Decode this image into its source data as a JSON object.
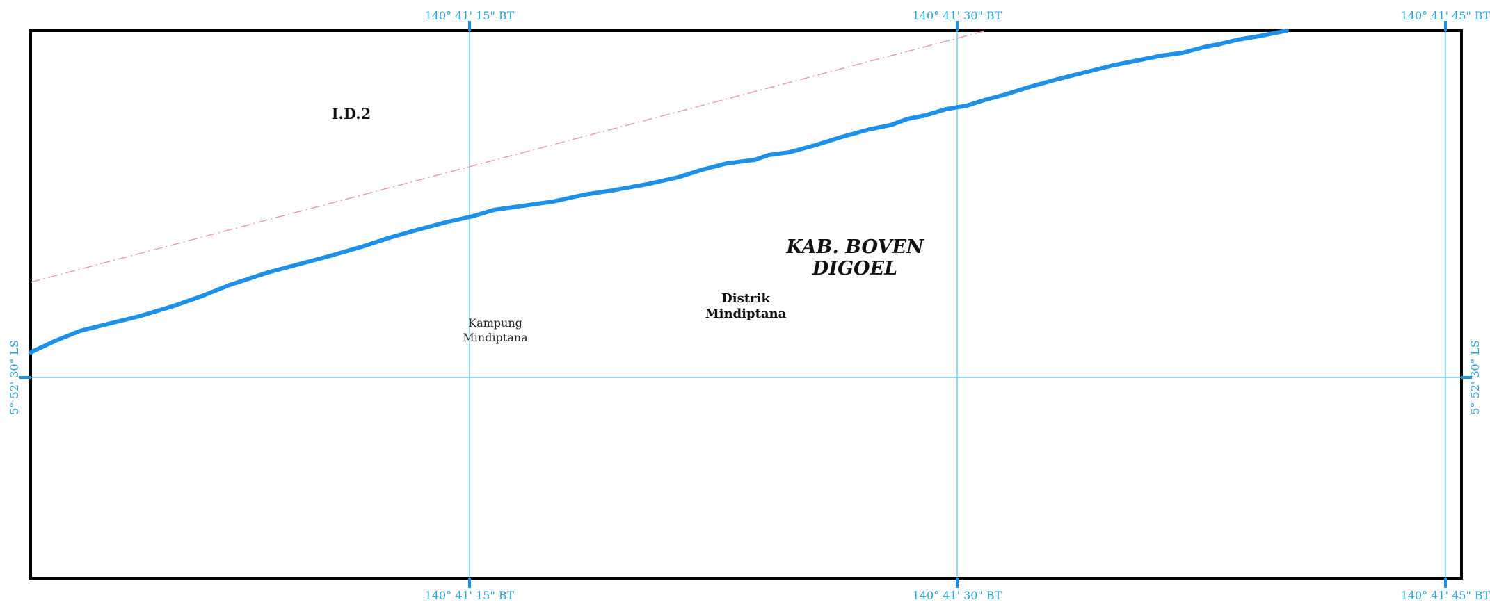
{
  "map": {
    "grid_labels": {
      "lon_top": [
        "140° 41' 15\" BT",
        "140° 41' 30\" BT",
        "140° 41' 45\" BT"
      ],
      "lon_bottom": [
        "140° 41' 15\" BT",
        "140° 41' 30\" BT",
        "140° 41' 45\" BT"
      ],
      "lat_left": "5° 52' 30\" LS",
      "lat_right": "5° 52' 30\" LS"
    },
    "labels": {
      "area_code": "I.D.2",
      "kab_line1": "KAB. BOVEN",
      "kab_line2": "DIGOEL",
      "distrik_line1": "Distrik",
      "distrik_line2": "Mindiptana",
      "kampung_line1": "Kampung",
      "kampung_line2": "Mindiptana"
    },
    "colors": {
      "frame": "#000000",
      "grid": "#5bc0e8",
      "coord_text": "#2aa3d8",
      "river": "#1e90e8",
      "boundary": "#e39aae"
    }
  }
}
